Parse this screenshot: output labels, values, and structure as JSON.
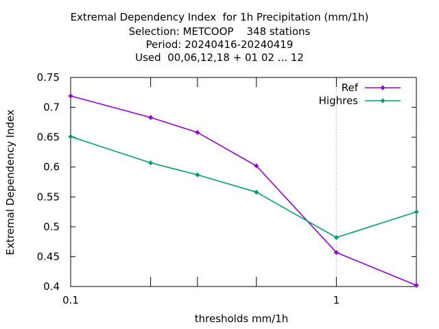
{
  "chart_data": {
    "type": "line",
    "title_lines": [
      "Extremal Dependency Index  for 1h Precipitation (mm/1h)",
      "Selection: METCOOP    348 stations",
      "Period: 20240416-20240419",
      "Used  00,06,12,18 + 01 02 ... 12"
    ],
    "xlabel": "thresholds mm/1h",
    "ylabel": "Extremal Dependency Index",
    "x_scale": "log",
    "xlim": [
      0.1,
      2
    ],
    "ylim": [
      0.4,
      0.75
    ],
    "x_tick_labels": [
      {
        "value": 0.1,
        "label": "0.1"
      },
      {
        "value": 1,
        "label": "1"
      }
    ],
    "x_minor_ticks": [
      0.2,
      0.3,
      0.5
    ],
    "y_ticks": [
      {
        "value": 0.4,
        "label": "0.4"
      },
      {
        "value": 0.45,
        "label": "0.45"
      },
      {
        "value": 0.5,
        "label": "0.5"
      },
      {
        "value": 0.55,
        "label": "0.55"
      },
      {
        "value": 0.6,
        "label": "0.6"
      },
      {
        "value": 0.65,
        "label": "0.65"
      },
      {
        "value": 0.7,
        "label": "0.7"
      },
      {
        "value": 0.75,
        "label": "0.75"
      }
    ],
    "grid": "dotted line at x = 1",
    "legend_position": "top-right",
    "x": [
      0.1,
      0.2,
      0.3,
      0.5,
      1,
      2
    ],
    "series": [
      {
        "name": "Ref",
        "color": "#9400d3",
        "values": [
          0.719,
          0.683,
          0.658,
          0.602,
          0.457,
          0.402
        ]
      },
      {
        "name": "Highres",
        "color": "#009e73",
        "values": [
          0.651,
          0.607,
          0.587,
          0.558,
          0.482,
          0.525
        ]
      }
    ]
  }
}
